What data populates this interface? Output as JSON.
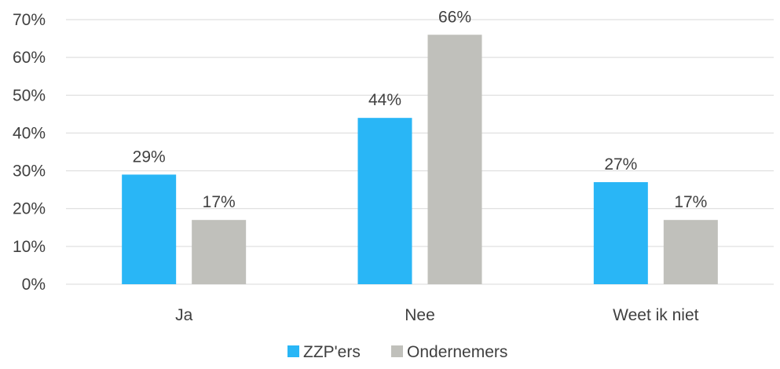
{
  "chart_data": {
    "type": "bar",
    "categories": [
      "Ja",
      "Nee",
      "Weet ik niet"
    ],
    "series": [
      {
        "name": "ZZP'ers",
        "values": [
          29,
          44,
          27
        ],
        "labels": [
          "29%",
          "44%",
          "27%"
        ],
        "color": "#29b6f6"
      },
      {
        "name": "Ondernemers",
        "values": [
          17,
          66,
          17
        ],
        "labels": [
          "17%",
          "66%",
          "17%"
        ],
        "color": "#c0c0bb"
      }
    ],
    "yticks": [
      "0%",
      "10%",
      "20%",
      "30%",
      "40%",
      "50%",
      "60%",
      "70%"
    ],
    "ylim": [
      0,
      70
    ],
    "ystep": 10,
    "grid": true,
    "legend_position": "bottom",
    "gridline_color": "#d9d9d9"
  }
}
